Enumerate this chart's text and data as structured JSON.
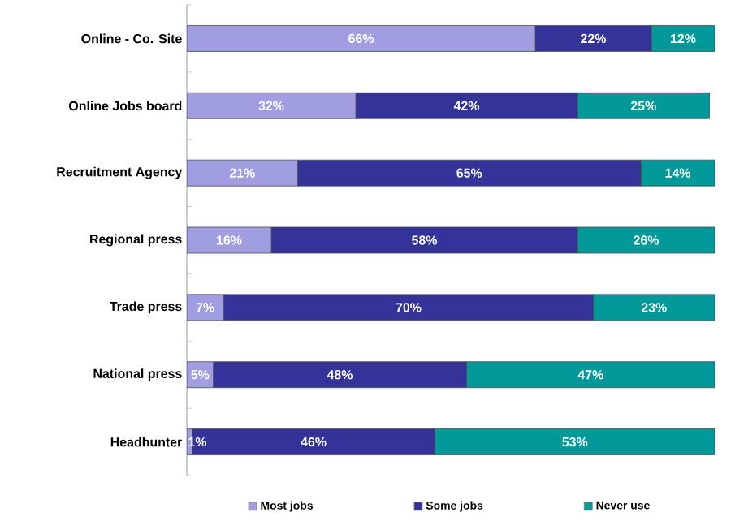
{
  "chart_data": {
    "type": "bar",
    "orientation": "horizontal",
    "stacked": true,
    "legend": "bottom",
    "categories": [
      "Online - Co. Site",
      "Online Jobs board",
      "Recruitment Agency",
      "Regional press",
      "Trade press",
      "National press",
      "Headhunter"
    ],
    "series": [
      {
        "name": "Most jobs",
        "color": "#a09ee0",
        "values": [
          66,
          32,
          21,
          16,
          7,
          5,
          1
        ],
        "value_labels": [
          "66%",
          "32%",
          "21%",
          "16%",
          "7%",
          "5%",
          "1%"
        ]
      },
      {
        "name": "Some jobs",
        "color": "#333399",
        "values": [
          22,
          42,
          65,
          58,
          70,
          48,
          46
        ],
        "value_labels": [
          "22%",
          "42%",
          "65%",
          "58%",
          "70%",
          "48%",
          "46%"
        ]
      },
      {
        "name": "Never use",
        "color": "#009999",
        "values": [
          12,
          25,
          14,
          26,
          23,
          47,
          53
        ],
        "value_labels": [
          "12%",
          "25%",
          "14%",
          "26%",
          "23%",
          "47%",
          "53%"
        ]
      }
    ]
  }
}
